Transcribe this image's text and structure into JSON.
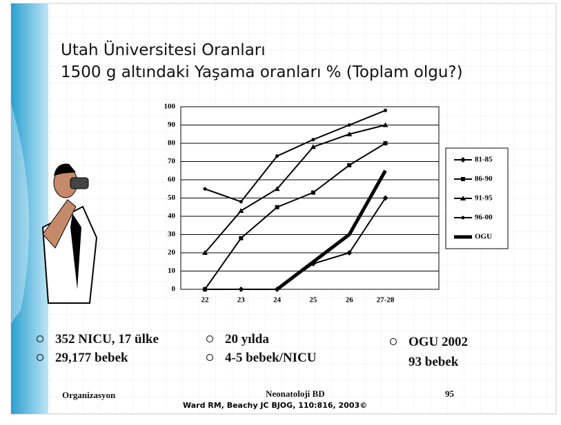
{
  "slide": {
    "title_lines": [
      "Utah Üniversitesi Oranları",
      "1500 g altındaki Yaşama oranları % (Toplam olgu?)"
    ],
    "bullets_left": [
      "352 NICU, 17 ülke",
      "29,177 bebek"
    ],
    "bullets_middle": [
      "20 yılda",
      "4-5 bebek/NICU"
    ],
    "bullets_right": [
      "OGU 2002",
      "93 bebek"
    ],
    "footer_left": "Organizasyon",
    "footer_center": "Neonatoloji BD",
    "footer_page": "95",
    "citation": "Ward RM, Beachy JC BJOG, 110:816, 2003©"
  },
  "chart_data": {
    "type": "line",
    "categories": [
      "22",
      "23",
      "24",
      "25",
      "26",
      "27-28"
    ],
    "series": [
      {
        "name": "81-85",
        "color": "#000000",
        "marker": "diamond",
        "width": 2,
        "values": [
          0,
          0,
          0,
          14,
          20,
          50
        ]
      },
      {
        "name": "86-90",
        "color": "#000000",
        "marker": "square",
        "width": 2,
        "values": [
          0,
          28,
          45,
          53,
          68,
          80
        ]
      },
      {
        "name": "91-95",
        "color": "#000000",
        "marker": "triangle",
        "width": 2,
        "values": [
          20,
          43,
          55,
          78,
          85,
          90
        ]
      },
      {
        "name": "96-00",
        "color": "#000000",
        "marker": "circle",
        "width": 2,
        "values": [
          55,
          48,
          73,
          82,
          90,
          98
        ]
      },
      {
        "name": "OGU",
        "color": "#000000",
        "marker": "none",
        "width": 5,
        "values": [
          null,
          null,
          0,
          15,
          30,
          65
        ]
      }
    ],
    "ylim": [
      0,
      100
    ],
    "yticks": [
      0,
      10,
      20,
      30,
      40,
      50,
      60,
      70,
      80,
      90,
      100
    ],
    "grid": true,
    "legend": "right"
  }
}
